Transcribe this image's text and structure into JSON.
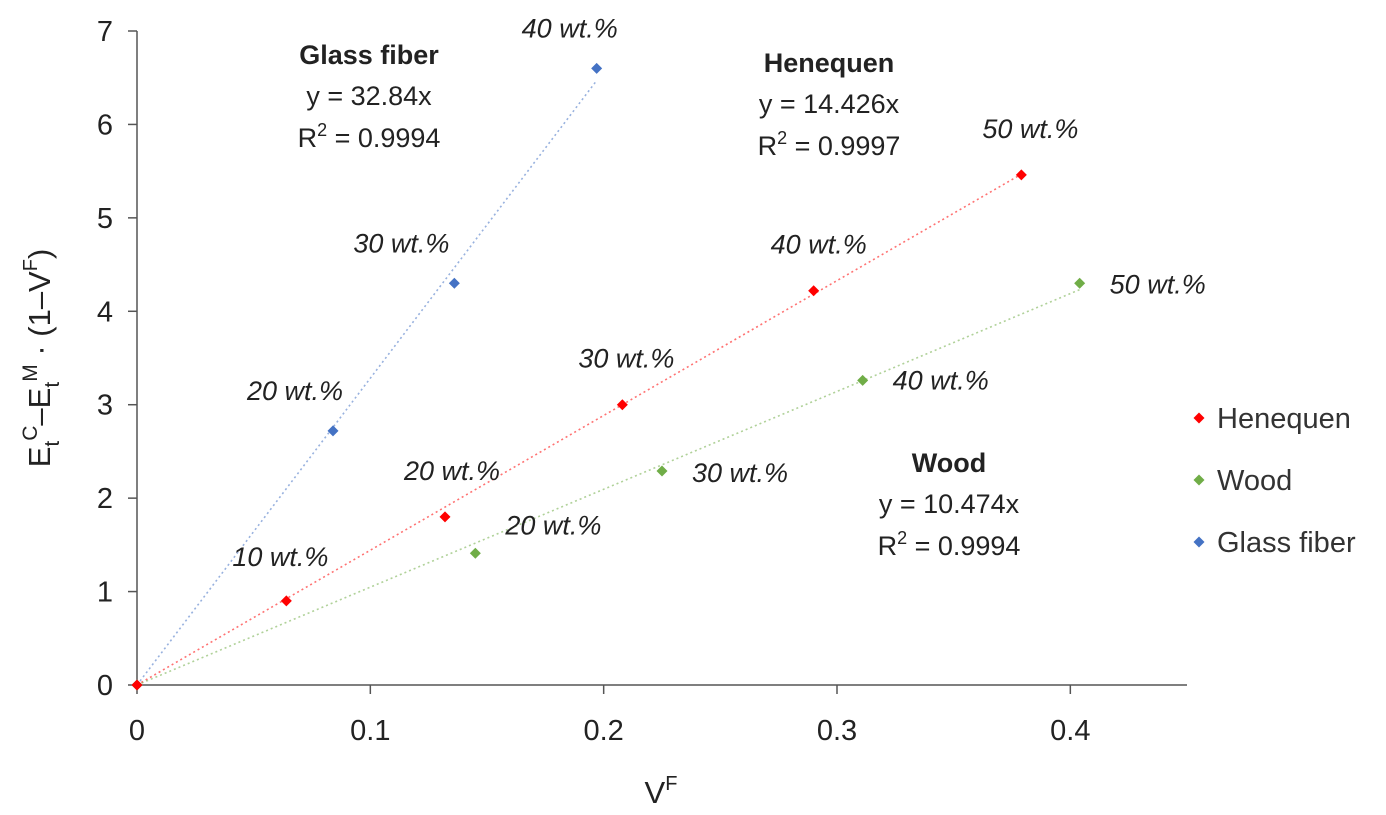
{
  "chart_data": {
    "type": "scatter",
    "title": "",
    "xlabel": {
      "base": "V",
      "sup": "F"
    },
    "ylabel": {
      "e1": "E",
      "t1": "t",
      "c": "C",
      "dash": "–",
      "e2": "E",
      "t2": "t",
      "m": "M",
      "dot": " · (1–V",
      "f": "F",
      "close": ")"
    },
    "xlim": [
      0,
      0.45
    ],
    "ylim": [
      0,
      7
    ],
    "xticks": [
      0,
      0.1,
      0.2,
      0.3,
      0.4
    ],
    "xtick_labels": [
      "0",
      "0.1",
      "0.2",
      "0.3",
      "0.4"
    ],
    "yticks": [
      0,
      1,
      2,
      3,
      4,
      5,
      6,
      7
    ],
    "ytick_labels": [
      "0",
      "1",
      "2",
      "3",
      "4",
      "5",
      "6",
      "7"
    ],
    "grid": false,
    "legend_position": "right",
    "series": [
      {
        "name": "Henequen",
        "color": "#ff0000",
        "x": [
          0,
          0.064,
          0.132,
          0.208,
          0.29,
          0.379
        ],
        "y": [
          0,
          0.9,
          1.8,
          3.0,
          4.22,
          5.46
        ],
        "labels": [
          "",
          "10 wt.%",
          "20 wt.%",
          "30 wt.%",
          "40 wt.%",
          "50 wt.%"
        ],
        "fit": {
          "slope": 14.426,
          "x_end": 0.379,
          "title": "Henequen",
          "equation": "y = 14.426x",
          "r2_prefix": "R",
          "r2_sup": "2",
          "r2_value": " = 0.9997"
        }
      },
      {
        "name": "Wood",
        "color": "#70ad47",
        "x": [
          0,
          0.145,
          0.225,
          0.311,
          0.404
        ],
        "y": [
          0,
          1.41,
          2.29,
          3.26,
          4.3
        ],
        "labels": [
          "",
          "20 wt.%",
          "30 wt.%",
          "40 wt.%",
          "50 wt.%"
        ],
        "fit": {
          "slope": 10.474,
          "x_end": 0.404,
          "title": "Wood",
          "equation": "y = 10.474x",
          "r2_prefix": "R",
          "r2_sup": "2",
          "r2_value": " = 0.9994"
        }
      },
      {
        "name": "Glass fiber",
        "color": "#4472c4",
        "x": [
          0,
          0.084,
          0.136,
          0.197
        ],
        "y": [
          0,
          2.72,
          4.3,
          6.6
        ],
        "labels": [
          "",
          "20 wt.%",
          "30 wt.%",
          "40 wt.%"
        ],
        "fit": {
          "slope": 32.84,
          "x_end": 0.197,
          "title": "Glass fiber",
          "equation": "y = 32.84x",
          "r2_prefix": "R",
          "r2_sup": "2",
          "r2_value": " = 0.9994"
        }
      }
    ]
  }
}
